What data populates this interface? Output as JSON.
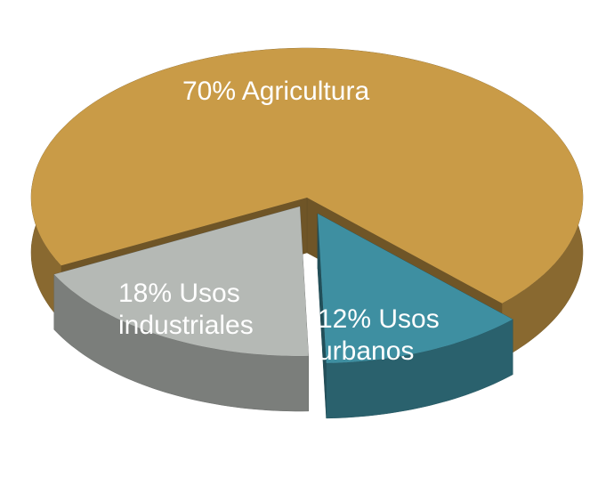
{
  "chart_data": {
    "type": "pie",
    "categories": [
      "Agricultura",
      "Usos industriales",
      "Usos urbanos"
    ],
    "values": [
      70,
      18,
      12
    ],
    "value_labels": [
      "70%",
      "18%",
      "12%"
    ],
    "colors": [
      "#c99b47",
      "#b5b9b5",
      "#3e8fa1"
    ]
  }
}
